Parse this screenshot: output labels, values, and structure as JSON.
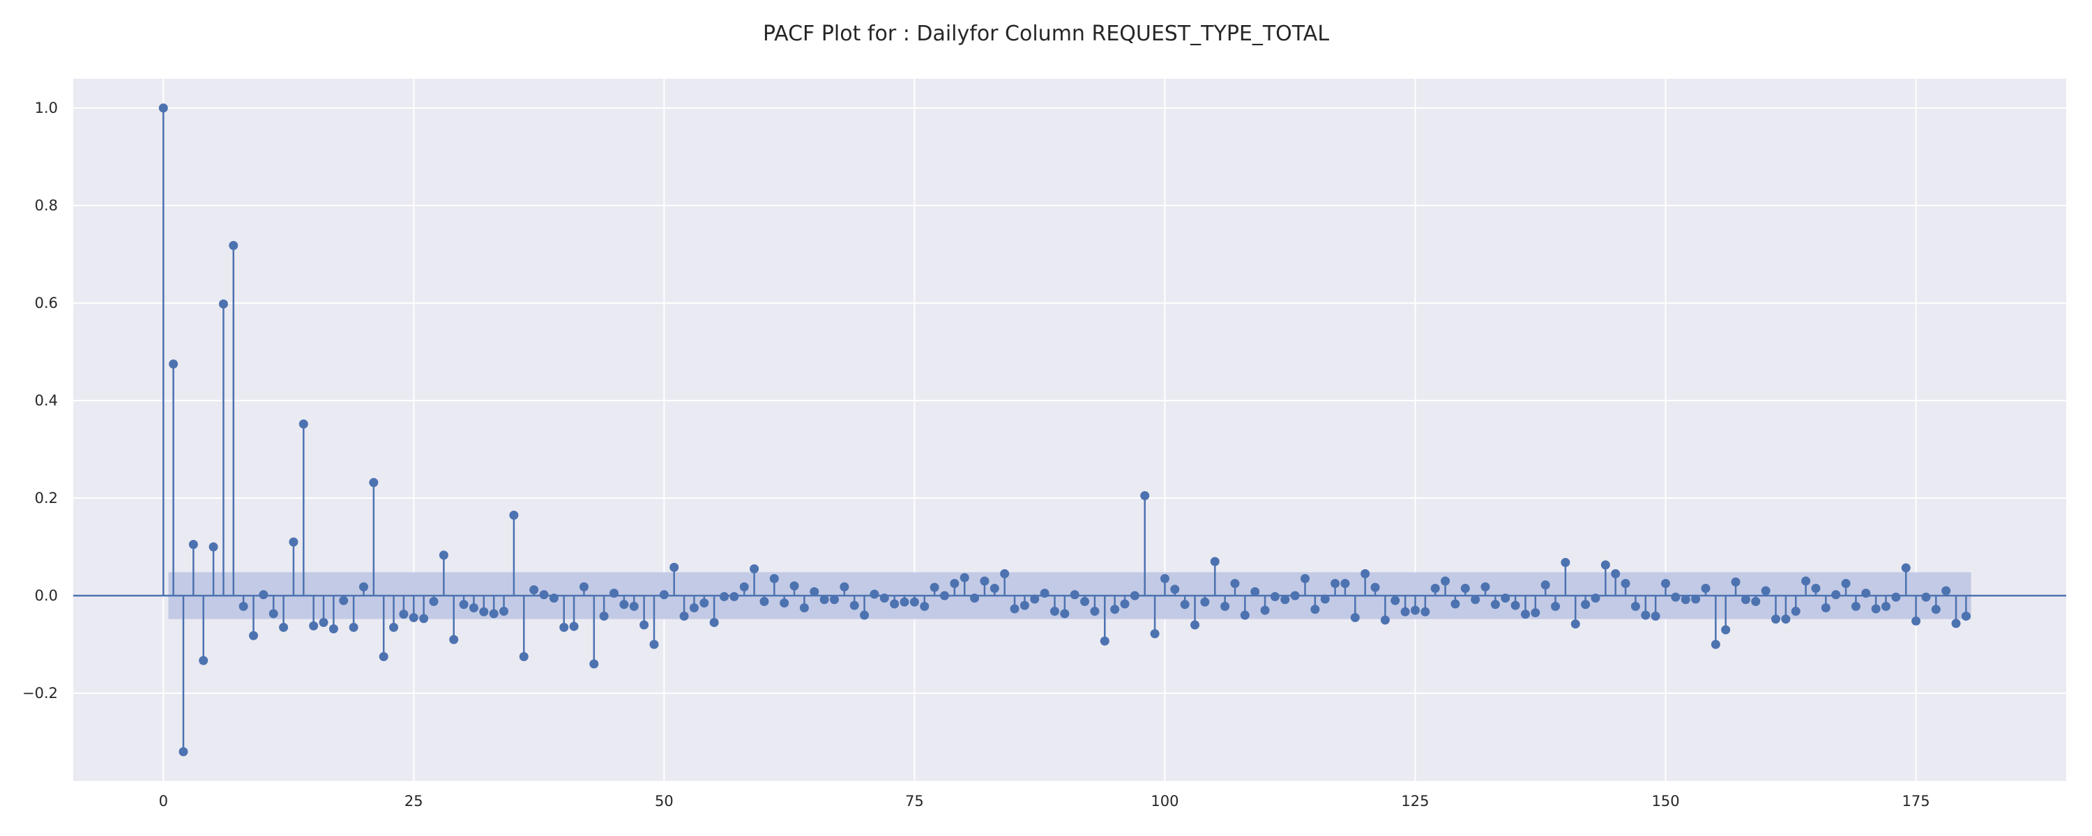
{
  "chart_data": {
    "type": "stem",
    "title": "PACF Plot for : Dailyfor Column REQUEST_TYPE_TOTAL",
    "xlabel": "",
    "ylabel": "",
    "xlim": [
      -9,
      190
    ],
    "ylim": [
      -0.38,
      1.06
    ],
    "xticks": [
      0,
      25,
      50,
      75,
      100,
      125,
      150,
      175
    ],
    "yticks": [
      -0.2,
      0.0,
      0.2,
      0.4,
      0.6,
      0.8,
      1.0
    ],
    "ytick_labels": [
      "−0.2",
      "0.0",
      "0.2",
      "0.4",
      "0.6",
      "0.8",
      "1.0"
    ],
    "grid": true,
    "confidence_band": {
      "from_lag": 0.5,
      "to_lag": 180.5,
      "lower": -0.048,
      "upper": 0.048
    },
    "colors": {
      "stem": "#4c72b0",
      "band": "#c3cae5",
      "background": "#eaeaf2",
      "grid": "#ffffff"
    },
    "lags": [
      0,
      1,
      2,
      3,
      4,
      5,
      6,
      7,
      8,
      9,
      10,
      11,
      12,
      13,
      14,
      15,
      16,
      17,
      18,
      19,
      20,
      21,
      22,
      23,
      24,
      25,
      26,
      27,
      28,
      29,
      30,
      31,
      32,
      33,
      34,
      35,
      36,
      37,
      38,
      39,
      40,
      41,
      42,
      43,
      44,
      45,
      46,
      47,
      48,
      49,
      50,
      51,
      52,
      53,
      54,
      55,
      56,
      57,
      58,
      59,
      60,
      61,
      62,
      63,
      64,
      65,
      66,
      67,
      68,
      69,
      70,
      71,
      72,
      73,
      74,
      75,
      76,
      77,
      78,
      79,
      80,
      81,
      82,
      83,
      84,
      85,
      86,
      87,
      88,
      89,
      90,
      91,
      92,
      93,
      94,
      95,
      96,
      97,
      98,
      99,
      100,
      101,
      102,
      103,
      104,
      105,
      106,
      107,
      108,
      109,
      110,
      111,
      112,
      113,
      114,
      115,
      116,
      117,
      118,
      119,
      120,
      121,
      122,
      123,
      124,
      125,
      126,
      127,
      128,
      129,
      130,
      131,
      132,
      133,
      134,
      135,
      136,
      137,
      138,
      139,
      140,
      141,
      142,
      143,
      144,
      145,
      146,
      147,
      148,
      149,
      150,
      151,
      152,
      153,
      154,
      155,
      156,
      157,
      158,
      159,
      160,
      161,
      162,
      163,
      164,
      165,
      166,
      167,
      168,
      169,
      170,
      171,
      172,
      173,
      174,
      175,
      176,
      177,
      178,
      179,
      180
    ],
    "values": [
      1.0,
      0.475,
      -0.32,
      0.105,
      -0.133,
      0.1,
      0.598,
      0.718,
      -0.022,
      -0.082,
      0.002,
      -0.037,
      -0.065,
      0.11,
      0.352,
      -0.062,
      -0.055,
      -0.068,
      -0.01,
      -0.065,
      0.018,
      0.232,
      -0.125,
      -0.065,
      -0.038,
      -0.045,
      -0.047,
      -0.012,
      0.083,
      -0.09,
      -0.018,
      -0.025,
      -0.033,
      -0.037,
      -0.032,
      0.165,
      -0.125,
      0.012,
      0.002,
      -0.005,
      -0.065,
      -0.063,
      0.018,
      -0.14,
      -0.042,
      0.005,
      -0.018,
      -0.022,
      -0.06,
      -0.1,
      0.002,
      0.058,
      -0.042,
      -0.025,
      -0.015,
      -0.055,
      -0.002,
      -0.002,
      0.018,
      0.055,
      -0.012,
      0.035,
      -0.015,
      0.02,
      -0.025,
      0.008,
      -0.008,
      -0.008,
      0.018,
      -0.02,
      -0.04,
      0.003,
      -0.005,
      -0.017,
      -0.013,
      -0.013,
      -0.022,
      0.017,
      0.0,
      0.025,
      0.037,
      -0.005,
      0.03,
      0.015,
      0.045,
      -0.027,
      -0.02,
      -0.007,
      0.005,
      -0.032,
      -0.037,
      0.002,
      -0.012,
      -0.032,
      -0.093,
      -0.028,
      -0.017,
      0.0,
      0.205,
      -0.078,
      0.035,
      0.013,
      -0.018,
      -0.06,
      -0.013,
      0.07,
      -0.022,
      0.025,
      -0.04,
      0.008,
      -0.03,
      -0.002,
      -0.008,
      0.0,
      0.035,
      -0.028,
      -0.007,
      0.025,
      0.025,
      -0.045,
      0.045,
      0.017,
      -0.05,
      -0.01,
      -0.033,
      -0.03,
      -0.033,
      0.015,
      0.03,
      -0.017,
      0.015,
      -0.008,
      0.018,
      -0.018,
      -0.005,
      -0.02,
      -0.038,
      -0.035,
      0.022,
      -0.022,
      0.068,
      -0.058,
      -0.018,
      -0.005,
      0.063,
      0.045,
      0.025,
      -0.022,
      -0.04,
      -0.042,
      0.025,
      -0.003,
      -0.008,
      -0.007,
      0.015,
      -0.1,
      -0.07,
      0.028,
      -0.008,
      -0.012,
      0.01,
      -0.048,
      -0.048,
      -0.032,
      0.03,
      0.015,
      -0.025,
      0.002,
      0.025,
      -0.022,
      0.005,
      -0.027,
      -0.022,
      -0.003,
      0.057,
      -0.052,
      -0.003,
      -0.028,
      0.01,
      -0.057,
      -0.042
    ]
  }
}
